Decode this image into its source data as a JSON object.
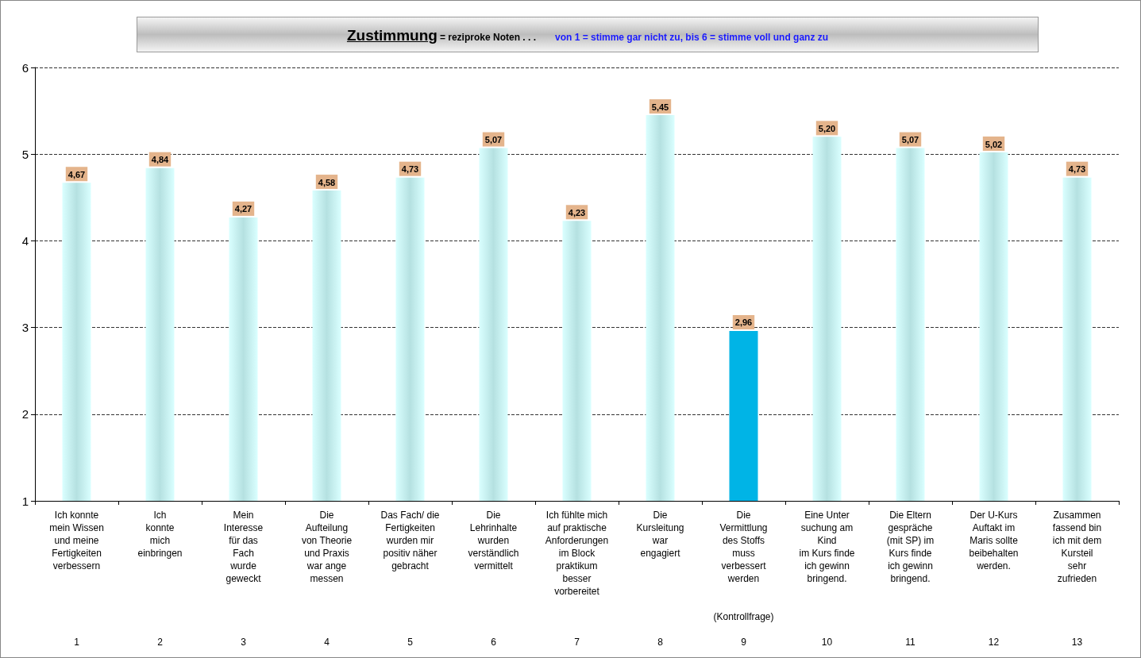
{
  "chart_data": {
    "type": "bar",
    "title": "Zustimmung",
    "subtitle": "= reziproke Noten  . . .",
    "annotations": [
      "von 1 = stimme gar nicht zu,  bis  6 = stimme voll und ganz zu"
    ],
    "categories": [
      "Ich konnte\nmein Wissen\nund meine\nFertigkeiten\nverbessern\n1",
      "Ich\nkonnte\nmich\neinbringen\n2",
      "Mein\nInteresse\nfür das\nFach\nwurde\ngeweckt\n3",
      "Die\nAufteilung\nvon Theorie\nund Praxis\nwar ange\nmessen\n4",
      "Das Fach/ die\nFertigkeiten\nwurden mir\npositiv näher\ngebracht\n5",
      "Die\nLehrinhalte\nwurden\nverständlich\nvermittelt\n6",
      "Ich fühlte mich\nauf praktische\nAnforderungen\nim Block\npraktikum\nbesser\nvorbereitet\n7",
      "Die\nKursleitung\nwar\nengagiert\n8",
      "Die\nVermittlung\ndes Stoffs\nmuss\nverbessert\nwerden\n\n\n(Kontrollfrage)\n9",
      "Eine Unter\nsuchung am\nKind\nim Kurs finde\nich gewinn\nbringend.\n10",
      "Die Eltern\ngespräche\n(mit SP) im\nKurs finde\nich gewinn\nbringend.\n11",
      "Der U-Kurs\nAuftakt im\nMaris sollte\nbeibehalten\nwerden.\n12",
      "Zusammen\nfassend bin\nich mit dem\nKursteil\nsehr\nzufrieden\n13"
    ],
    "values": [
      4.67,
      4.84,
      4.27,
      4.58,
      4.73,
      5.07,
      4.23,
      5.45,
      2.96,
      5.2,
      5.07,
      5.02,
      4.73
    ],
    "colors": [
      "#a8dcdc",
      "#a8dcdc",
      "#a8dcdc",
      "#a8dcdc",
      "#a8dcdc",
      "#a8dcdc",
      "#a8dcdc",
      "#a8dcdc",
      "#00b4e6",
      "#a8dcdc",
      "#a8dcdc",
      "#a8dcdc",
      "#a8dcdc"
    ],
    "value_labels": [
      "4,67",
      "4,84",
      "4,27",
      "4,58",
      "4,73",
      "5,07",
      "4,23",
      "5,45",
      "2,96",
      "5,20",
      "5,07",
      "5,02",
      "4,73"
    ],
    "ylim": [
      1,
      6
    ],
    "yticks": [
      1,
      2,
      3,
      4,
      5,
      6
    ],
    "grid": "y"
  }
}
